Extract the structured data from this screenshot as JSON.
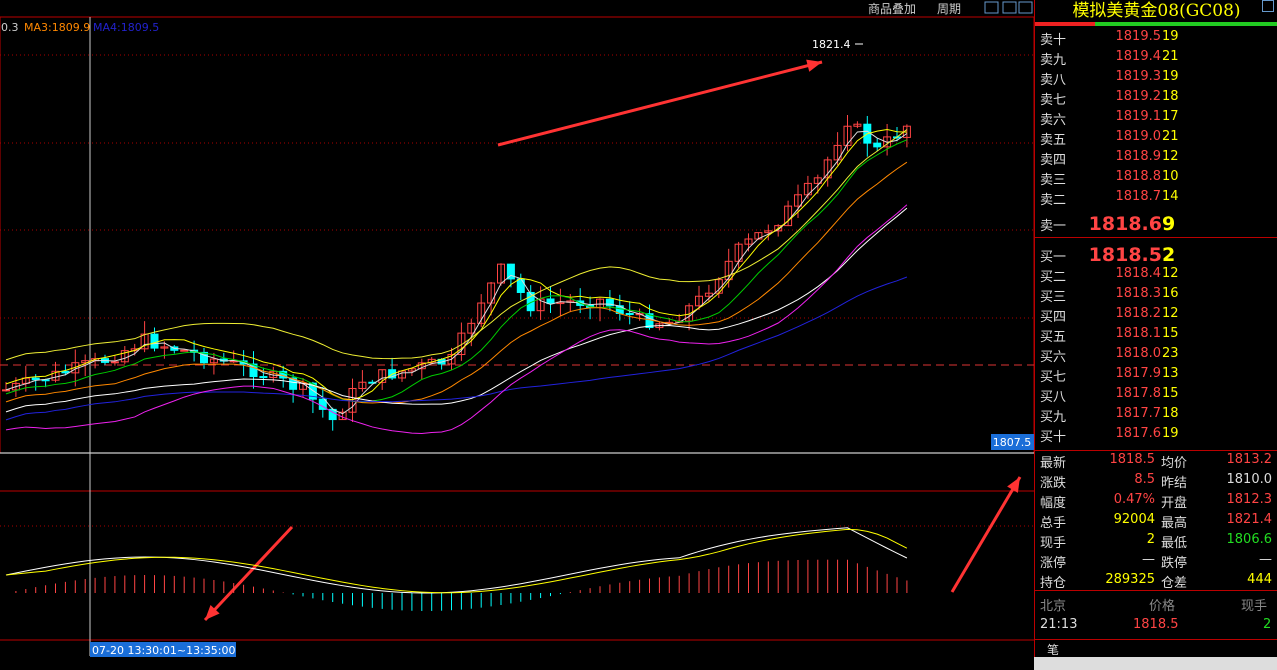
{
  "header": {
    "indicator_text_a": "0.3",
    "indicator_text_b": "MA3:1809.9",
    "indicator_text_c": "MA4:1809.5",
    "link_overlay": "商品叠加",
    "link_period": "周期"
  },
  "chart": {
    "high_label": "1821.4",
    "low_axis_label": "1807.5",
    "time_label": "07-20 13:30:01~13:35:00"
  },
  "quote": {
    "title": "模拟美黄金08(GC08)",
    "asks": [
      {
        "label": "卖十",
        "price": "1819.5",
        "vol": "19"
      },
      {
        "label": "卖九",
        "price": "1819.4",
        "vol": "21"
      },
      {
        "label": "卖八",
        "price": "1819.3",
        "vol": "19"
      },
      {
        "label": "卖七",
        "price": "1819.2",
        "vol": "18"
      },
      {
        "label": "卖六",
        "price": "1819.1",
        "vol": "17"
      },
      {
        "label": "卖五",
        "price": "1819.0",
        "vol": "21"
      },
      {
        "label": "卖四",
        "price": "1818.9",
        "vol": "12"
      },
      {
        "label": "卖三",
        "price": "1818.8",
        "vol": "10"
      },
      {
        "label": "卖二",
        "price": "1818.7",
        "vol": "14"
      },
      {
        "label": "卖一",
        "price": "1818.6",
        "vol": "9"
      }
    ],
    "bids": [
      {
        "label": "买一",
        "price": "1818.5",
        "vol": "2"
      },
      {
        "label": "买二",
        "price": "1818.4",
        "vol": "12"
      },
      {
        "label": "买三",
        "price": "1818.3",
        "vol": "16"
      },
      {
        "label": "买四",
        "price": "1818.2",
        "vol": "12"
      },
      {
        "label": "买五",
        "price": "1818.1",
        "vol": "15"
      },
      {
        "label": "买六",
        "price": "1818.0",
        "vol": "23"
      },
      {
        "label": "买七",
        "price": "1817.9",
        "vol": "13"
      },
      {
        "label": "买八",
        "price": "1817.8",
        "vol": "15"
      },
      {
        "label": "买九",
        "price": "1817.7",
        "vol": "18"
      },
      {
        "label": "买十",
        "price": "1817.6",
        "vol": "19"
      }
    ],
    "stats": [
      {
        "l1": "最新",
        "v1": "1818.5",
        "l2": "均价",
        "v2": "1813.2"
      },
      {
        "l1": "涨跌",
        "v1": "8.5",
        "l2": "昨结",
        "v2": "1810.0"
      },
      {
        "l1": "幅度",
        "v1": "0.47%",
        "l2": "开盘",
        "v2": "1812.3"
      },
      {
        "l1": "总手",
        "v1": "92004",
        "l2": "最高",
        "v2": "1821.4"
      },
      {
        "l1": "现手",
        "v1": "2",
        "l2": "最低",
        "v2": "1806.6"
      },
      {
        "l1": "涨停",
        "v1": "—",
        "l2": "跌停",
        "v2": "—"
      },
      {
        "l1": "持仓",
        "v1": "289325",
        "l2": "仓差",
        "v2": "444"
      }
    ],
    "ticks": {
      "h_city": "北京",
      "h_price": "价格",
      "h_vol": "现手",
      "time": "21:13",
      "price": "1818.5",
      "vol": "2"
    },
    "tab": "笔"
  }
}
